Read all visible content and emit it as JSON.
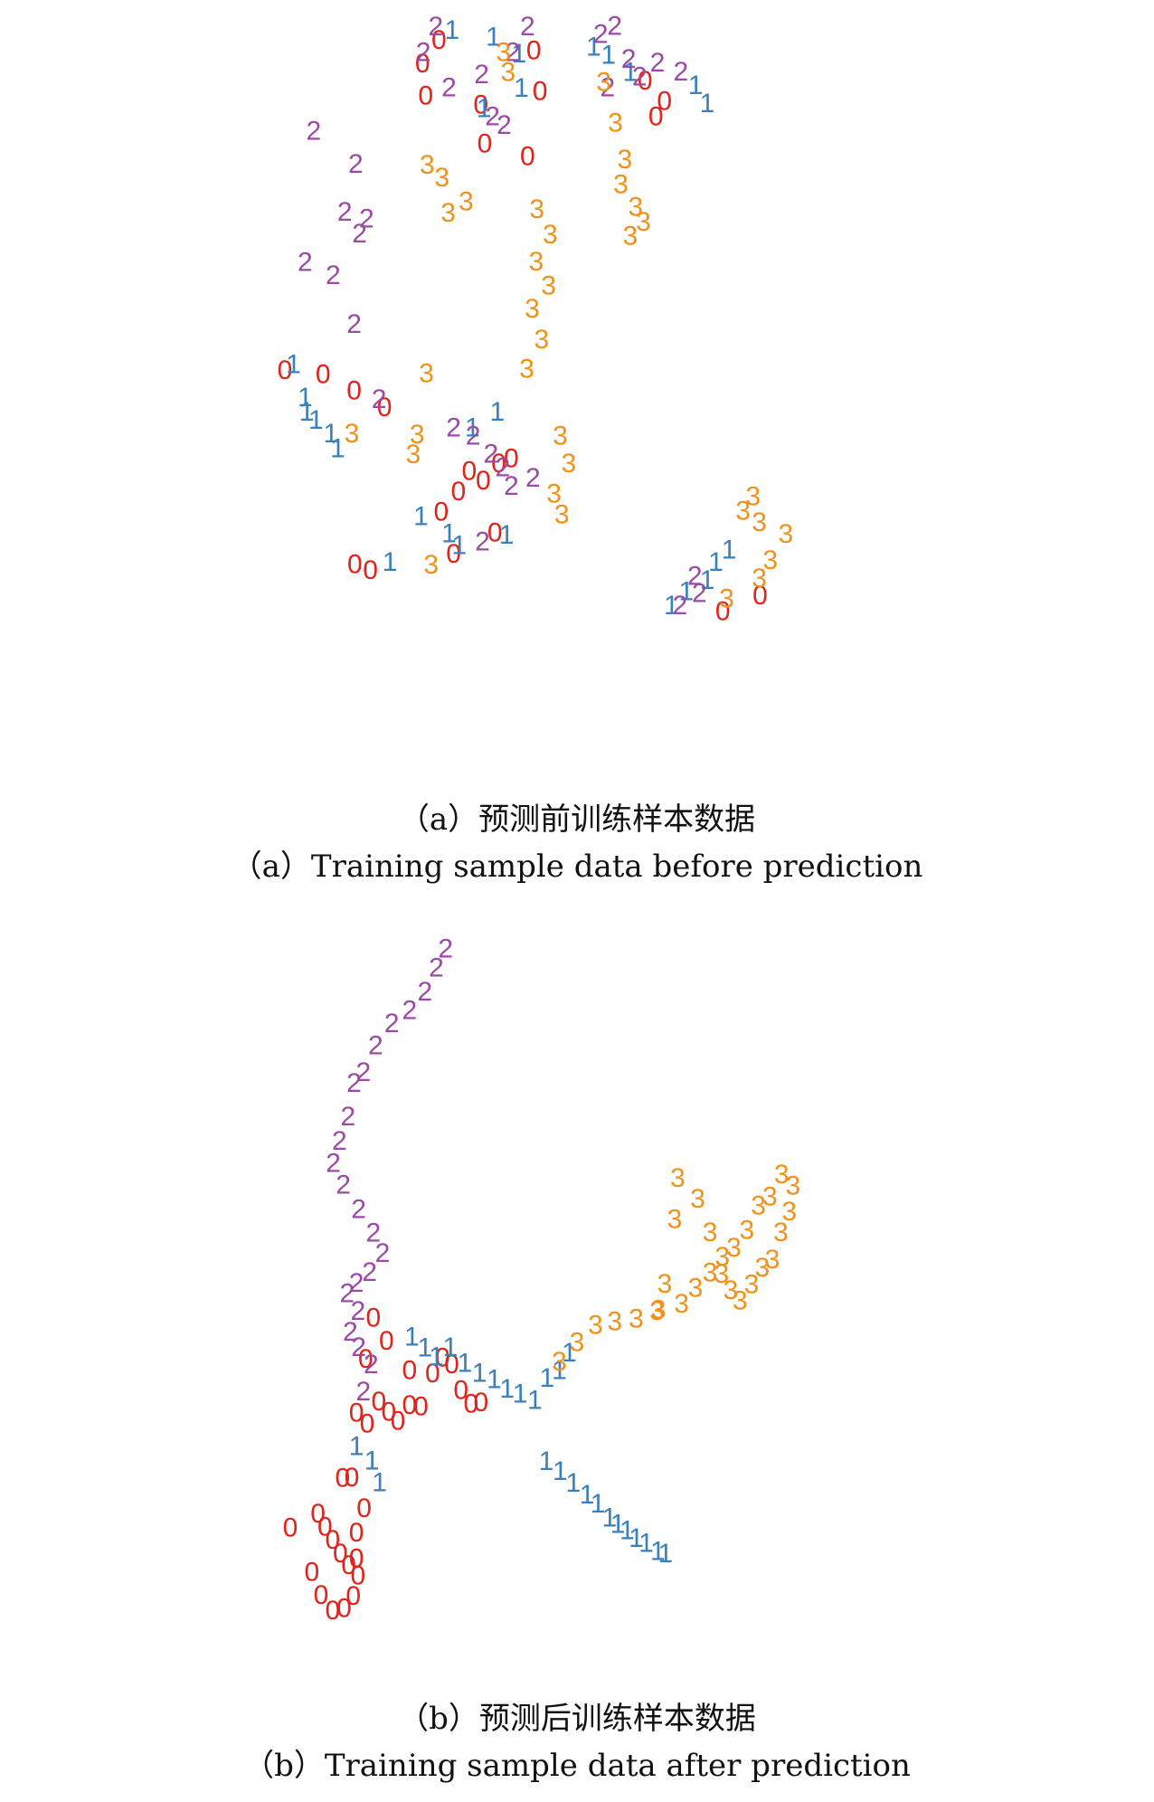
{
  "colors": {
    "0": "#e0241b",
    "1": "#3a80bd",
    "2": "#9b4aa6",
    "3": "#f0921b"
  },
  "panels": [
    {
      "caption_zh": "（a）预测前训练样本数据",
      "caption_en": "（a）Training sample data before prediction"
    },
    {
      "caption_zh": "（b）预测后训练样本数据",
      "caption_en": "（b）Training sample data after prediction"
    }
  ],
  "chart_data": [
    {
      "type": "scatter",
      "title": "（a）Training sample data before prediction",
      "xlabel": "",
      "ylabel": "",
      "xlim": [
        0,
        100
      ],
      "ylim": [
        0,
        100
      ],
      "grid": false,
      "axes": false,
      "marker": "class digit",
      "clusters": [
        {
          "class": "0",
          "x": [
            35.5,
            33.4,
            33.8,
            47.7,
            48.5,
            40.9,
            62.0,
            63.4,
            64.5,
            41.4,
            46.9,
            15.7,
            20.6,
            24.6,
            35.8,
            42.7,
            37.4,
            24.7,
            26.7,
            76.8,
            72.0,
            41.2,
            39.4,
            38.0,
            43.2,
            44.8,
            28.5
          ],
          "y": [
            95.9,
            92.8,
            88.5,
            94.5,
            89.1,
            87.3,
            90.5,
            85.7,
            87.8,
            82.1,
            80.4,
            51.9,
            51.4,
            49.2,
            33.1,
            30.3,
            27.5,
            26.1,
            25.3,
            21.9,
            19.8,
            37.2,
            38.5,
            35.8,
            39.5,
            40.2,
            47.0
          ]
        },
        {
          "class": "1",
          "x": [
            37.2,
            42.5,
            45.8,
            41.3,
            46.1,
            57.3,
            55.4,
            60.1,
            68.5,
            70.0,
            16.8,
            18.3,
            19.7,
            22.5,
            21.6,
            33.2,
            36.8,
            38.1,
            29.2,
            44.2,
            72.8,
            71.1,
            70.0,
            67.3,
            65.4,
            43.0,
            39.8,
            18.5
          ],
          "y": [
            97.2,
            96.3,
            94.1,
            86.8,
            89.5,
            93.9,
            95.0,
            91.6,
            89.9,
            87.5,
            52.7,
            48.3,
            45.3,
            41.5,
            43.5,
            32.5,
            30.2,
            28.6,
            26.4,
            30.0,
            28.0,
            26.4,
            24.0,
            22.5,
            20.6,
            46.4,
            44.3,
            46.4
          ]
        },
        {
          "class": "2",
          "x": [
            35.1,
            33.5,
            46.9,
            45.0,
            41.0,
            36.8,
            42.4,
            43.9,
            58.1,
            59.9,
            61.3,
            63.6,
            66.6,
            19.4,
            24.8,
            26.2,
            21.9,
            24.6,
            27.8,
            37.4,
            39.9,
            42.2,
            43.7,
            44.8,
            47.6,
            41.1,
            68.4,
            69.0,
            66.5,
            18.3,
            25.3,
            23.4,
            56.3,
            57.2
          ],
          "y": [
            97.7,
            94.3,
            97.7,
            94.3,
            91.3,
            89.6,
            85.7,
            84.6,
            97.8,
            93.4,
            91.0,
            92.9,
            91.7,
            83.8,
            79.4,
            72.1,
            64.6,
            58.1,
            48.1,
            44.3,
            43.2,
            40.8,
            39.0,
            36.5,
            37.6,
            29.1,
            24.5,
            22.2,
            20.6,
            66.3,
            70.1,
            73.0,
            96.7,
            89.6
          ]
        },
        {
          "class": "3",
          "x": [
            43.8,
            44.4,
            34.0,
            35.9,
            36.7,
            39.0,
            56.7,
            58.2,
            59.4,
            60.8,
            61.8,
            58.9,
            60.1,
            48.1,
            49.8,
            48.0,
            49.6,
            47.5,
            48.7,
            46.8,
            33.9,
            32.7,
            51.1,
            52.2,
            50.3,
            51.3,
            24.3,
            32.2,
            34.5,
            72.5,
            76.7,
            78.1,
            80.1,
            74.6,
            75.9,
            76.7
          ],
          "y": [
            94.3,
            91.6,
            79.3,
            77.6,
            72.9,
            74.4,
            90.3,
            84.9,
            80.0,
            73.7,
            71.7,
            76.7,
            69.8,
            73.4,
            70.0,
            66.4,
            63.2,
            60.1,
            56.0,
            52.1,
            51.5,
            43.4,
            43.2,
            39.5,
            35.5,
            32.7,
            43.5,
            40.7,
            26.0,
            21.5,
            24.2,
            26.6,
            30.1,
            33.2,
            35.1,
            31.7
          ]
        }
      ]
    },
    {
      "type": "scatter",
      "title": "（b）Training sample data after prediction",
      "xlabel": "",
      "ylabel": "",
      "xlim": [
        0,
        100
      ],
      "ylim": [
        0,
        100
      ],
      "grid": false,
      "axes": false,
      "marker": "class digit",
      "clusters": [
        {
          "class": "0",
          "x": [
            24.6,
            26.0,
            27.5,
            28.8,
            30.0,
            31.5,
            33.0,
            31.5,
            34.5,
            35.8,
            37.0,
            38.2,
            39.5,
            40.8,
            26.8,
            28.5,
            25.8,
            16.0,
            19.6,
            20.5,
            21.5,
            22.5,
            23.6,
            24.8,
            24.2,
            23.0,
            21.5,
            20.0,
            18.8,
            24.6,
            24.6,
            25.6,
            24.0,
            22.8
          ],
          "y": [
            28.4,
            26.8,
            30.0,
            28.5,
            27.2,
            29.5,
            29.3,
            34.5,
            34.0,
            36.3,
            35.3,
            31.6,
            29.7,
            29.9,
            42.0,
            38.7,
            36.1,
            11.9,
            13.9,
            12.0,
            10.1,
            8.2,
            6.5,
            5.0,
            2.1,
            0.3,
            0.0,
            2.2,
            5.5,
            7.5,
            11.2,
            14.7,
            19.1,
            19.0
          ]
        },
        {
          "class": "1",
          "x": [
            31.8,
            33.5,
            35.0,
            36.8,
            38.7,
            40.6,
            42.5,
            44.2,
            45.9,
            47.8,
            49.4,
            51.0,
            52.3,
            24.6,
            26.6,
            27.6,
            49.3,
            51.1,
            52.8,
            54.6,
            56.0,
            57.5,
            58.6,
            59.8,
            61.0,
            62.3,
            63.8,
            64.8
          ],
          "y": [
            39.3,
            37.7,
            36.4,
            37.8,
            35.5,
            34.1,
            33.2,
            31.8,
            31.1,
            30.2,
            33.4,
            34.5,
            37.0,
            23.6,
            21.5,
            18.4,
            21.4,
            20.0,
            18.3,
            16.6,
            15.3,
            13.3,
            12.4,
            11.5,
            10.4,
            9.7,
            8.5,
            8.2
          ]
        },
        {
          "class": "2",
          "x": [
            36.2,
            35.0,
            33.5,
            31.5,
            29.2,
            27.1,
            25.5,
            24.3,
            23.5,
            22.4,
            21.6,
            22.9,
            24.9,
            26.8,
            28.0,
            26.3,
            24.6,
            23.4,
            24.8,
            23.8,
            24.9,
            26.5,
            25.5
          ],
          "y": [
            95.0,
            92.3,
            88.8,
            86.2,
            84.3,
            81.1,
            77.3,
            75.7,
            70.9,
            67.4,
            64.2,
            61.1,
            57.6,
            54.2,
            51.3,
            48.6,
            47.0,
            45.5,
            43.0,
            40.0,
            37.8,
            35.3,
            31.4
          ]
        },
        {
          "class": "3",
          "x": [
            51.0,
            53.3,
            55.7,
            58.2,
            61.0,
            63.9,
            66.9,
            68.7,
            70.6,
            72.1,
            73.3,
            74.5,
            76.0,
            77.4,
            78.7,
            79.8,
            80.9,
            81.4,
            79.9,
            78.4,
            76.9,
            75.4,
            73.7,
            72.2,
            70.6,
            69.0,
            66.4,
            66.0,
            64.7,
            63.7
          ],
          "y": [
            35.7,
            38.5,
            41.0,
            41.5,
            41.9,
            43.2,
            44.0,
            46.3,
            48.5,
            48.3,
            46.0,
            44.5,
            46.8,
            49.2,
            50.4,
            54.3,
            57.3,
            61.0,
            62.6,
            59.4,
            58.1,
            54.6,
            52.1,
            50.8,
            54.3,
            59.1,
            62.1,
            56.2,
            46.9,
            43.0
          ]
        }
      ]
    }
  ]
}
